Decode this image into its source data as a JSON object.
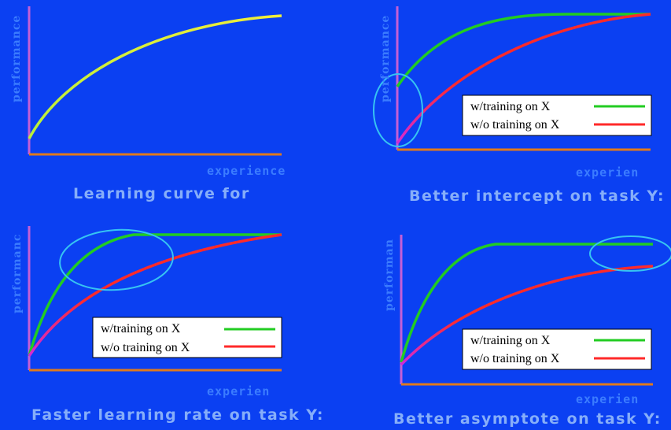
{
  "colors": {
    "background": "#0b40f2",
    "with_training": "#22cc22",
    "without_training": "#ff2a2a",
    "baseline": "#e8ea3a",
    "highlight": "#36c4f2"
  },
  "panels": [
    {
      "id": "top-left",
      "y_label": "performance",
      "x_label": "experience",
      "caption": "Learning curve for"
    },
    {
      "id": "top-right",
      "y_label": "performance",
      "x_label": "experien",
      "caption": "Better intercept on task Y:",
      "legend": {
        "with": "w/training on X",
        "without": "w/o training on X"
      }
    },
    {
      "id": "bottom-left",
      "y_label": "performanc",
      "x_label": "experien",
      "caption": "Faster learning rate on task Y:",
      "legend": {
        "with": "w/training on X",
        "without": "w/o training on X"
      }
    },
    {
      "id": "bottom-right",
      "y_label": "performan",
      "x_label": "experien",
      "caption": "Better asymptote on task Y:",
      "legend": {
        "with": "w/training on X",
        "without": "w/o training on X"
      }
    }
  ]
}
